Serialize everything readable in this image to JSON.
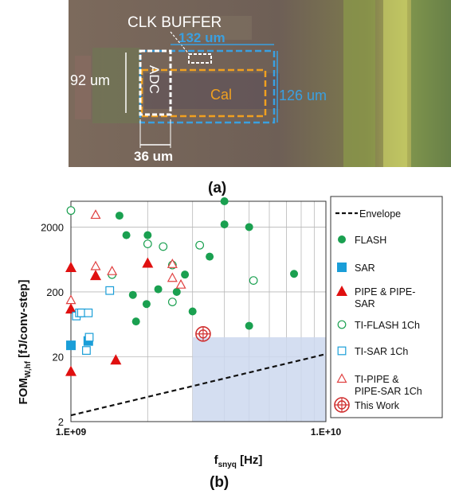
{
  "figure": {
    "caption_a": "(a)",
    "caption_b": "(b)"
  },
  "die_photo": {
    "clk_buffer_label": "CLK BUFFER",
    "width_label": "132 um",
    "height_left_label": "92 um",
    "height_right_label": "126 um",
    "adc_width_label": "36 um",
    "adc_block_label": "ADC",
    "cal_block_label": "Cal",
    "colors": {
      "adc_box": "#ffffff",
      "cal_box": "#f0a020",
      "clk_box": "#ffffff",
      "outer_box": "#3aa0e0",
      "cal_text": "#f0a020",
      "dim_blue": "#3aa0e0"
    }
  },
  "chart_data": {
    "type": "scatter",
    "xlabel": "fsnyq [Hz]",
    "xlabel_main": "f",
    "xlabel_sub": "snyq",
    "xlabel_unit": " [Hz]",
    "ylabel_main": "FOM",
    "ylabel_sub": "W,hf",
    "ylabel_unit": " [fJ/conv-step]",
    "x_scale": "log",
    "y_scale": "log",
    "xlim": [
      1000000000,
      10000000000
    ],
    "ylim": [
      2,
      5000
    ],
    "x_ticks": [
      {
        "value": 1000000000,
        "label": "1.E+09"
      },
      {
        "value": 10000000000,
        "label": "1.E+10"
      }
    ],
    "y_ticks": [
      {
        "value": 2,
        "label": "2"
      },
      {
        "value": 20,
        "label": "20"
      },
      {
        "value": 200,
        "label": "200"
      },
      {
        "value": 2000,
        "label": "2000"
      }
    ],
    "grid": true,
    "legend_position": "right",
    "shaded_region": {
      "x": [
        3000000000,
        10000000000
      ],
      "y": [
        2,
        40
      ],
      "color": "#cdd8ee"
    },
    "series": [
      {
        "name": "Envelope",
        "marker": "dashed-line",
        "color": "#111111",
        "points": [
          [
            1000000000,
            2.5
          ],
          [
            10000000000,
            22
          ]
        ]
      },
      {
        "name": "FLASH",
        "marker": "filled-circle",
        "color": "#1aa050",
        "points": [
          [
            1550000000,
            3000
          ],
          [
            1650000000,
            1500
          ],
          [
            1750000000,
            180
          ],
          [
            1800000000,
            70
          ],
          [
            1980000000,
            130
          ],
          [
            2000000000,
            1500
          ],
          [
            2200000000,
            220
          ],
          [
            2600000000,
            200
          ],
          [
            2800000000,
            370
          ],
          [
            3000000000,
            100
          ],
          [
            3500000000,
            700
          ],
          [
            4000000000,
            5000
          ],
          [
            4000000000,
            2200
          ],
          [
            5000000000,
            2000
          ],
          [
            5000000000,
            60
          ],
          [
            7500000000,
            380
          ]
        ]
      },
      {
        "name": "SAR",
        "marker": "filled-square",
        "color": "#1a9ed8",
        "points": [
          [
            1000000000,
            30
          ],
          [
            1170000000,
            35
          ]
        ]
      },
      {
        "name": "PIPE & PIPE-SAR",
        "marker": "filled-triangle",
        "color": "#e01010",
        "points": [
          [
            1000000000,
            480
          ],
          [
            1000000000,
            110
          ],
          [
            1000000000,
            12
          ],
          [
            1250000000,
            360
          ],
          [
            1500000000,
            18
          ],
          [
            2000000000,
            560
          ]
        ]
      },
      {
        "name": "TI-FLASH 1Ch",
        "marker": "open-circle",
        "color": "#1aa050",
        "points": [
          [
            1000000000,
            3600
          ],
          [
            1450000000,
            370
          ],
          [
            2000000000,
            1100
          ],
          [
            2300000000,
            1000
          ],
          [
            2500000000,
            140
          ],
          [
            2500000000,
            520
          ],
          [
            3200000000,
            1050
          ],
          [
            5200000000,
            300
          ]
        ]
      },
      {
        "name": "TI-SAR 1Ch",
        "marker": "open-square",
        "color": "#1a9ed8",
        "points": [
          [
            1050000000,
            85
          ],
          [
            1080000000,
            95
          ],
          [
            1100000000,
            95
          ],
          [
            1150000000,
            25
          ],
          [
            1170000000,
            95
          ],
          [
            1180000000,
            40
          ],
          [
            1420000000,
            210
          ]
        ]
      },
      {
        "name": "TI-PIPE & PIPE-SAR 1Ch",
        "marker": "open-triangle",
        "color": "#e04040",
        "points": [
          [
            1000000000,
            150
          ],
          [
            1250000000,
            3100
          ],
          [
            1250000000,
            500
          ],
          [
            1450000000,
            420
          ],
          [
            2500000000,
            540
          ],
          [
            2500000000,
            330
          ],
          [
            2700000000,
            260
          ]
        ]
      },
      {
        "name": "This Work",
        "marker": "target",
        "color": "#d03030",
        "points": [
          [
            3300000000,
            45
          ]
        ]
      }
    ]
  }
}
